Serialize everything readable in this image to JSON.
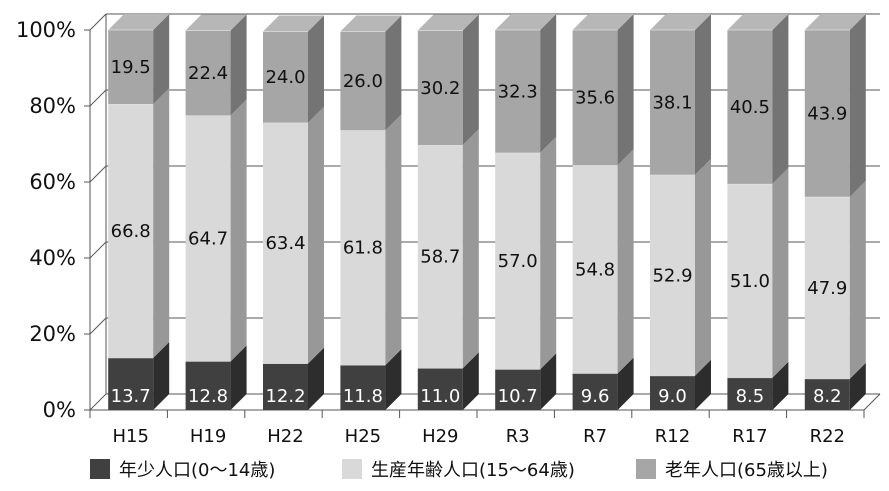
{
  "chart_data": {
    "type": "bar",
    "stacked": true,
    "percent": true,
    "categories": [
      "H15",
      "H19",
      "H22",
      "H25",
      "H29",
      "R3",
      "R7",
      "R12",
      "R17",
      "R22"
    ],
    "series": [
      {
        "name": "年少人口(0～14歳)",
        "color": "#404040",
        "values": [
          13.7,
          12.8,
          12.2,
          11.8,
          11.0,
          10.7,
          9.6,
          9.0,
          8.5,
          8.2
        ]
      },
      {
        "name": "生産年齢人口(15～64歳)",
        "color": "#d9d9d9",
        "values": [
          66.8,
          64.7,
          63.4,
          61.8,
          58.7,
          57.0,
          54.8,
          52.9,
          51.0,
          47.9
        ]
      },
      {
        "name": "老年人口(65歳以上)",
        "color": "#a6a6a6",
        "values": [
          19.5,
          22.4,
          24.0,
          26.0,
          30.2,
          32.3,
          35.6,
          38.1,
          40.5,
          43.9
        ]
      }
    ],
    "value_labels": [
      [
        "13.7",
        "12.8",
        "12.2",
        "11.8",
        "11.0",
        "10.7",
        "9.6",
        "9.0",
        "8.5",
        "8.2"
      ],
      [
        "66.8",
        "64.7",
        "63.4",
        "61.8",
        "58.7",
        "57.0",
        "54.8",
        "52.9",
        "51.0",
        "47.9"
      ],
      [
        "19.5",
        "22.4",
        "24.0",
        "26.0",
        "30.2",
        "32.3",
        "35.6",
        "38.1",
        "40.5",
        "43.9"
      ]
    ],
    "y_ticks": [
      "0%",
      "20%",
      "40%",
      "60%",
      "80%",
      "100%"
    ],
    "ylim": [
      0,
      100
    ],
    "grid": true,
    "legend_position": "bottom",
    "three_d": true
  }
}
